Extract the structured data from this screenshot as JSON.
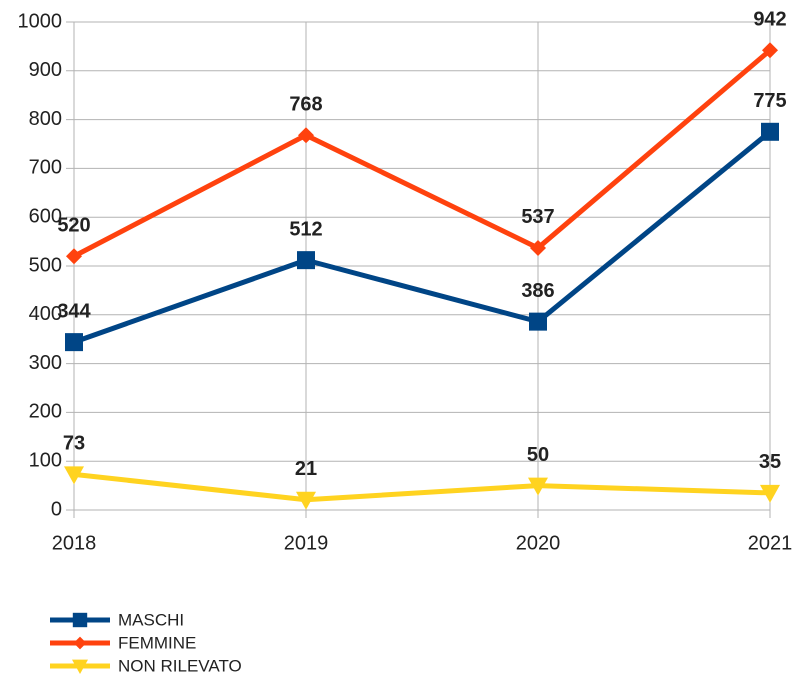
{
  "chart_data": {
    "type": "line",
    "categories": [
      "2018",
      "2019",
      "2020",
      "2021"
    ],
    "series": [
      {
        "name": "MASCHI",
        "color": "#004586",
        "marker": "square",
        "values": [
          344,
          512,
          386,
          775
        ]
      },
      {
        "name": "FEMMINE",
        "color": "#ff420e",
        "marker": "diamond",
        "values": [
          520,
          768,
          537,
          942
        ]
      },
      {
        "name": "NON RILEVATO",
        "color": "#ffd320",
        "marker": "triangle-down",
        "values": [
          73,
          21,
          50,
          35
        ]
      }
    ],
    "ylim": [
      0,
      1000
    ],
    "yticks": [
      0,
      100,
      200,
      300,
      400,
      500,
      600,
      700,
      800,
      900,
      1000
    ],
    "grid": true,
    "legend": "bottom-left"
  }
}
